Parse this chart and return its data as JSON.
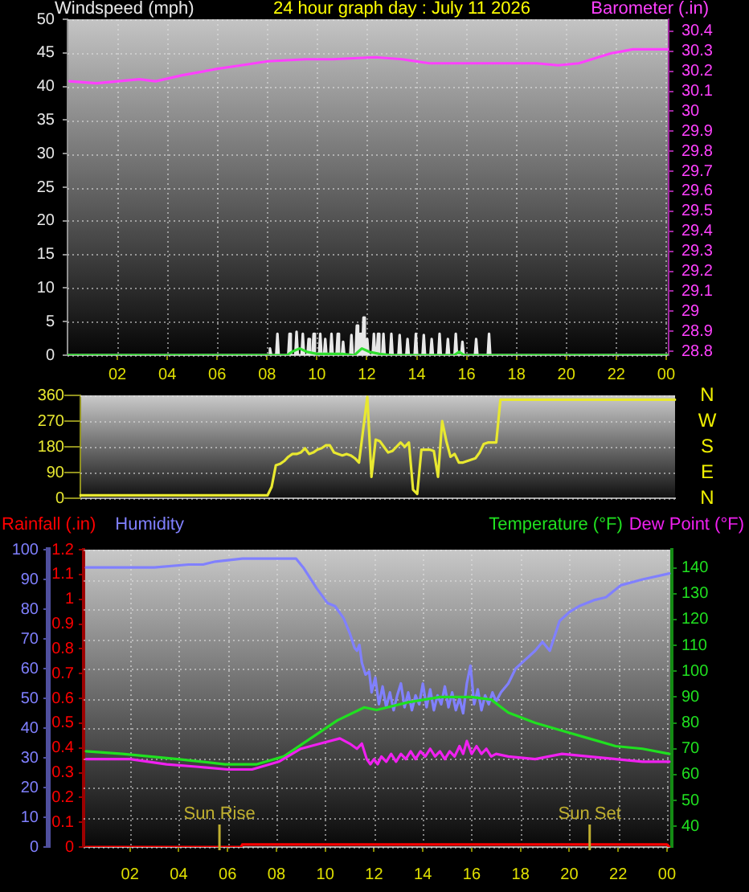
{
  "chart_data": [
    {
      "type": "line",
      "title": "24 hour graph day : July 11 2026",
      "ylabel": "Windspeed (mph)",
      "y2label": "Barometer (.in)",
      "xlim": [
        "2026-07-11T00:00",
        "2026-07-12T00:06"
      ],
      "xticks": [
        {
          "value": "2026-07-11T02:00",
          "label": "02"
        },
        {
          "value": "2026-07-11T04:00",
          "label": "04"
        },
        {
          "value": "2026-07-11T06:00",
          "label": "06"
        },
        {
          "value": "2026-07-11T08:00",
          "label": "08"
        },
        {
          "value": "2026-07-11T10:00",
          "label": "10"
        },
        {
          "value": "2026-07-11T12:00",
          "label": "12"
        },
        {
          "value": "2026-07-11T14:00",
          "label": "14"
        },
        {
          "value": "2026-07-11T16:00",
          "label": "16"
        },
        {
          "value": "2026-07-11T18:00",
          "label": "18"
        },
        {
          "value": "2026-07-11T20:00",
          "label": "20"
        },
        {
          "value": "2026-07-11T22:00",
          "label": "22"
        },
        {
          "value": "2026-07-12T00:00",
          "label": "00"
        }
      ],
      "ylim": [
        0,
        50
      ],
      "yticks": [
        0,
        5,
        10,
        15,
        20,
        25,
        30,
        35,
        40,
        45,
        50
      ],
      "y2lim": [
        28.78,
        30.46
      ],
      "y2ticks": [
        28.8,
        28.9,
        29,
        29.1,
        29.2,
        29.3,
        29.4,
        29.5,
        29.6,
        29.7,
        29.8,
        29.9,
        30,
        30.1,
        30.2,
        30.3,
        30.4
      ],
      "grid": true,
      "series": [
        {
          "color": "#ff40ff",
          "axis": "y2",
          "x": [
            "2026-07-11T00:05",
            "2026-07-11T01:10",
            "2026-07-11T02:53",
            "2026-07-11T03:32",
            "2026-07-11T04:36",
            "2026-07-11T05:54",
            "2026-07-11T06:58",
            "2026-07-11T08:02",
            "2026-07-11T09:33",
            "2026-07-11T10:37",
            "2026-07-11T12:20",
            "2026-07-11T13:25",
            "2026-07-11T14:30",
            "2026-07-11T16:39",
            "2026-07-11T18:48",
            "2026-07-11T19:40",
            "2026-07-11T20:30",
            "2026-07-11T21:48",
            "2026-07-11T22:40",
            "2026-07-12T00:06"
          ],
          "values": [
            30.15,
            30.14,
            30.16,
            30.15,
            30.18,
            30.21,
            30.23,
            30.25,
            30.26,
            30.26,
            30.27,
            30.26,
            30.24,
            30.24,
            30.24,
            30.23,
            30.24,
            30.29,
            30.31,
            30.31
          ]
        },
        {
          "color": "#e8e8e8",
          "x": [
            "2026-07-11T00:00",
            "2026-07-11T08:04",
            "2026-07-11T08:07",
            "2026-07-11T08:10",
            "2026-07-11T08:22",
            "2026-07-11T08:25",
            "2026-07-11T08:28",
            "2026-07-11T08:51",
            "2026-07-11T08:54",
            "2026-07-11T08:57",
            "2026-07-11T09:08",
            "2026-07-11T09:11",
            "2026-07-11T09:14",
            "2026-07-11T09:23",
            "2026-07-11T09:26",
            "2026-07-11T09:29",
            "2026-07-11T09:37",
            "2026-07-11T09:40",
            "2026-07-11T09:43",
            "2026-07-11T09:49",
            "2026-07-11T09:52",
            "2026-07-11T09:55",
            "2026-07-11T10:05",
            "2026-07-11T10:08",
            "2026-07-11T10:11",
            "2026-07-11T10:17",
            "2026-07-11T10:20",
            "2026-07-11T10:23",
            "2026-07-11T10:32",
            "2026-07-11T10:35",
            "2026-07-11T10:38",
            "2026-07-11T10:47",
            "2026-07-11T10:50",
            "2026-07-11T10:53",
            "2026-07-11T11:00",
            "2026-07-11T11:03",
            "2026-07-11T11:06",
            "2026-07-11T11:20",
            "2026-07-11T11:23",
            "2026-07-11T11:26",
            "2026-07-11T11:33",
            "2026-07-11T11:36",
            "2026-07-11T11:39",
            "2026-07-11T11:41",
            "2026-07-11T11:44",
            "2026-07-11T11:47",
            "2026-07-11T11:49",
            "2026-07-11T11:52",
            "2026-07-11T11:55",
            "2026-07-11T11:58",
            "2026-07-11T12:01",
            "2026-07-11T12:04",
            "2026-07-11T12:14",
            "2026-07-11T12:17",
            "2026-07-11T12:20",
            "2026-07-11T12:24",
            "2026-07-11T12:27",
            "2026-07-11T12:30",
            "2026-07-11T12:37",
            "2026-07-11T12:40",
            "2026-07-11T12:43",
            "2026-07-11T12:56",
            "2026-07-11T12:59",
            "2026-07-11T13:02",
            "2026-07-11T13:16",
            "2026-07-11T13:19",
            "2026-07-11T13:22",
            "2026-07-11T13:35",
            "2026-07-11T13:38",
            "2026-07-11T13:41",
            "2026-07-11T13:55",
            "2026-07-11T13:58",
            "2026-07-11T14:01",
            "2026-07-11T14:14",
            "2026-07-11T14:17",
            "2026-07-11T14:20",
            "2026-07-11T14:33",
            "2026-07-11T14:36",
            "2026-07-11T14:39",
            "2026-07-11T14:52",
            "2026-07-11T14:55",
            "2026-07-11T14:58",
            "2026-07-11T15:12",
            "2026-07-11T15:15",
            "2026-07-11T15:18",
            "2026-07-11T15:31",
            "2026-07-11T15:34",
            "2026-07-11T15:37",
            "2026-07-11T15:47",
            "2026-07-11T15:50",
            "2026-07-11T15:53",
            "2026-07-11T16:20",
            "2026-07-11T16:23",
            "2026-07-11T16:26",
            "2026-07-11T16:51",
            "2026-07-11T16:54",
            "2026-07-11T16:57",
            "2026-07-12T00:06"
          ],
          "values": [
            0,
            0,
            1,
            0,
            0,
            3.2,
            0,
            0,
            3.2,
            0,
            0,
            3.5,
            0,
            0,
            3.2,
            0,
            0,
            2.4,
            0,
            0,
            3.2,
            0,
            0,
            3.2,
            0,
            0,
            2.4,
            0,
            0,
            3.2,
            0,
            0,
            3.2,
            0,
            0,
            2,
            0,
            0,
            3,
            0,
            0,
            4.4,
            0,
            0,
            3.2,
            0,
            0,
            5.6,
            0,
            0,
            2.4,
            0,
            0,
            3.2,
            0,
            0,
            3.2,
            0,
            0,
            3.2,
            0,
            0,
            3.2,
            0,
            0,
            3,
            0,
            0,
            2.4,
            0,
            0,
            3.2,
            0,
            0,
            3,
            0,
            0,
            2.4,
            0,
            0,
            3.2,
            0,
            0,
            2.4,
            0,
            0,
            3.2,
            0,
            0,
            2,
            0,
            0,
            2.4,
            0,
            0,
            3.2,
            0,
            0
          ]
        },
        {
          "color": "#30e030",
          "x": [
            "2026-07-11T00:00",
            "2026-07-11T08:48",
            "2026-07-11T09:00",
            "2026-07-11T09:18",
            "2026-07-11T09:36",
            "2026-07-11T10:00",
            "2026-07-11T11:00",
            "2026-07-11T11:30",
            "2026-07-11T11:48",
            "2026-07-11T12:06",
            "2026-07-11T12:30",
            "2026-07-11T13:00",
            "2026-07-11T15:30",
            "2026-07-11T15:42",
            "2026-07-11T15:54",
            "2026-07-12T00:06"
          ],
          "values": [
            0,
            0,
            0.5,
            1,
            0.5,
            0.2,
            0.2,
            0,
            1,
            0.5,
            0.2,
            0,
            0,
            0.5,
            0,
            0
          ]
        }
      ]
    },
    {
      "type": "line",
      "tick_labels": "y",
      "annotations": [
        "N",
        "W",
        "S",
        "E",
        "N"
      ],
      "categories": [
        null,
        null,
        null,
        null,
        null,
        null,
        null,
        null,
        null,
        null,
        null,
        null,
        null,
        null,
        null,
        null,
        null,
        null,
        null,
        null,
        null,
        null,
        null,
        null,
        null,
        null,
        null,
        null,
        null,
        null,
        null,
        null,
        null,
        null,
        null,
        null,
        null,
        null,
        null,
        null,
        null,
        null,
        null,
        null,
        null,
        null,
        null,
        null,
        null,
        null,
        null,
        null,
        null,
        null,
        null,
        null,
        null,
        null,
        null,
        null,
        null,
        null,
        null,
        null,
        null,
        null,
        null,
        null,
        null,
        null,
        null,
        null,
        null,
        null,
        null,
        null,
        null,
        null,
        null,
        null,
        null,
        null,
        null,
        null,
        null,
        null,
        null,
        null,
        null,
        null,
        null,
        null,
        null,
        null,
        null,
        null,
        null,
        null,
        null,
        null,
        null,
        null,
        null,
        null,
        null,
        null,
        null,
        null,
        null,
        null,
        null,
        null,
        null,
        null,
        null,
        null,
        null,
        null,
        null,
        null,
        null,
        null,
        null,
        null,
        null,
        null,
        null,
        null,
        null,
        null,
        null,
        null,
        null,
        null,
        null,
        null,
        null,
        null,
        null,
        null,
        null,
        null,
        null,
        null
      ],
      "ylim": [
        0,
        360
      ],
      "yticks": [
        0,
        90,
        180,
        270,
        360
      ],
      "grid": "y",
      "series": [
        {
          "color": "#e8e830",
          "values": [
            10,
            10,
            10,
            10,
            10,
            10,
            10,
            10,
            10,
            10,
            10,
            10,
            10,
            10,
            10,
            10,
            10,
            10,
            10,
            10,
            10,
            10,
            10,
            10,
            10,
            10,
            10,
            10,
            10,
            10,
            10,
            10,
            10,
            10,
            10,
            10,
            10,
            10,
            10,
            10,
            10,
            10,
            10,
            10,
            10,
            10,
            40,
            115,
            120,
            130,
            145,
            155,
            155,
            160,
            175,
            155,
            160,
            170,
            175,
            185,
            185,
            160,
            155,
            150,
            155,
            150,
            140,
            125,
            240,
            355,
            75,
            205,
            200,
            180,
            160,
            165,
            180,
            195,
            180,
            195,
            30,
            15,
            170,
            170,
            170,
            165,
            75,
            270,
            200,
            145,
            155,
            125,
            125,
            130,
            135,
            140,
            160,
            190,
            195,
            195,
            195,
            345,
            345,
            345,
            345,
            345,
            345,
            345,
            345,
            345,
            345,
            345,
            345,
            345,
            345,
            345,
            345,
            345,
            345,
            345,
            345,
            345,
            345,
            345,
            345,
            345,
            345,
            345,
            345,
            345,
            345,
            345,
            345,
            345,
            345,
            345,
            345,
            345,
            345,
            345,
            345,
            345,
            345,
            345
          ]
        }
      ]
    },
    {
      "type": "line",
      "legend": "top",
      "xlim": [
        "2026-07-11T00:06",
        "2026-07-12T00:12"
      ],
      "xticks": [
        {
          "value": "2026-07-11T02:00",
          "label": "02"
        },
        {
          "value": "2026-07-11T04:00",
          "label": "04"
        },
        {
          "value": "2026-07-11T06:00",
          "label": "06"
        },
        {
          "value": "2026-07-11T08:00",
          "label": "08"
        },
        {
          "value": "2026-07-11T10:00",
          "label": "10"
        },
        {
          "value": "2026-07-11T12:00",
          "label": "12"
        },
        {
          "value": "2026-07-11T14:00",
          "label": "14"
        },
        {
          "value": "2026-07-11T16:00",
          "label": "16"
        },
        {
          "value": "2026-07-11T18:00",
          "label": "18"
        },
        {
          "value": "2026-07-11T20:00",
          "label": "20"
        },
        {
          "value": "2026-07-11T22:00",
          "label": "22"
        },
        {
          "value": "2026-07-12T00:00",
          "label": "00"
        }
      ],
      "ylim": [
        0,
        100
      ],
      "yticks": [
        0,
        10,
        20,
        30,
        40,
        50,
        60,
        70,
        80,
        90,
        100
      ],
      "y2lim": [
        32,
        147
      ],
      "y2ticks": [
        40,
        50,
        60,
        70,
        80,
        90,
        100,
        110,
        120,
        130,
        140
      ],
      "y3lim": [
        0,
        1.2
      ],
      "y3ticks": [
        0,
        0.1,
        0.2,
        0.3,
        0.4,
        0.5,
        0.6,
        0.7,
        0.8,
        0.9,
        1,
        1.1,
        1.2
      ],
      "grid": true,
      "ref_lines": [
        {
          "axis": "x",
          "value": "2026-07-11T05:40",
          "label": "Sun Rise",
          "color": "#c0b030"
        },
        {
          "axis": "x",
          "value": "2026-07-11T20:50",
          "label": "Sun Set",
          "color": "#c0b030"
        }
      ],
      "series": [
        {
          "name": "Rainfall (.in)",
          "color": "#ff0000",
          "axis": "y3",
          "x": [
            "2026-07-11T00:12",
            "2026-07-11T06:33",
            "2026-07-11T06:36",
            "2026-07-12T00:00",
            "2026-07-12T00:06"
          ],
          "values": [
            0,
            0,
            0.01,
            0.01,
            0
          ]
        },
        {
          "name": "Humidity",
          "color": "#8080ff",
          "x": [
            "2026-07-11T00:12",
            "2026-07-11T01:30",
            "2026-07-11T03:00",
            "2026-07-11T04:24",
            "2026-07-11T05:00",
            "2026-07-11T05:30",
            "2026-07-11T06:36",
            "2026-07-11T08:48",
            "2026-07-11T09:06",
            "2026-07-11T09:39",
            "2026-07-11T10:06",
            "2026-07-11T10:24",
            "2026-07-11T10:45",
            "2026-07-11T11:00",
            "2026-07-11T11:12",
            "2026-07-11T11:18",
            "2026-07-11T11:24",
            "2026-07-11T11:30",
            "2026-07-11T11:39",
            "2026-07-11T11:48",
            "2026-07-11T11:54",
            "2026-07-11T12:03",
            "2026-07-11T12:12",
            "2026-07-11T12:21",
            "2026-07-11T12:30",
            "2026-07-11T12:39",
            "2026-07-11T12:48",
            "2026-07-11T12:57",
            "2026-07-11T13:06",
            "2026-07-11T13:15",
            "2026-07-11T13:24",
            "2026-07-11T13:33",
            "2026-07-11T13:42",
            "2026-07-11T13:51",
            "2026-07-11T14:00",
            "2026-07-11T14:09",
            "2026-07-11T14:18",
            "2026-07-11T14:27",
            "2026-07-11T14:36",
            "2026-07-11T14:45",
            "2026-07-11T14:54",
            "2026-07-11T15:03",
            "2026-07-11T15:12",
            "2026-07-11T15:21",
            "2026-07-11T15:30",
            "2026-07-11T15:39",
            "2026-07-11T15:48",
            "2026-07-11T15:57",
            "2026-07-11T16:06",
            "2026-07-11T16:15",
            "2026-07-11T16:24",
            "2026-07-11T16:33",
            "2026-07-11T16:42",
            "2026-07-11T16:51",
            "2026-07-11T17:00",
            "2026-07-11T17:12",
            "2026-07-11T17:30",
            "2026-07-11T17:48",
            "2026-07-11T18:12",
            "2026-07-11T18:36",
            "2026-07-11T18:54",
            "2026-07-11T19:12",
            "2026-07-11T19:36",
            "2026-07-11T20:00",
            "2026-07-11T20:24",
            "2026-07-11T21:00",
            "2026-07-11T21:30",
            "2026-07-11T22:06",
            "2026-07-11T23:00",
            "2026-07-12T00:06"
          ],
          "values": [
            94,
            94,
            94,
            95,
            95,
            96,
            97,
            97,
            94,
            87,
            82,
            81,
            77,
            72,
            67,
            66,
            68,
            62,
            58,
            59,
            52,
            57,
            48,
            54,
            47,
            52,
            46,
            51,
            55,
            47,
            52,
            46,
            51,
            48,
            55,
            47,
            53,
            46,
            51,
            48,
            54,
            47,
            52,
            46,
            50,
            45,
            55,
            61,
            48,
            53,
            46,
            51,
            48,
            52,
            49,
            52,
            55,
            60,
            63,
            66,
            69,
            66,
            76,
            79,
            81,
            83,
            84,
            88,
            90,
            92
          ]
        },
        {
          "name": "Temperature (°F)",
          "color": "#20e020",
          "axis": "y2",
          "x": [
            "2026-07-11T00:12",
            "2026-07-11T01:42",
            "2026-07-11T03:57",
            "2026-07-11T05:54",
            "2026-07-11T07:12",
            "2026-07-11T08:18",
            "2026-07-11T09:24",
            "2026-07-11T10:30",
            "2026-07-11T11:36",
            "2026-07-11T12:06",
            "2026-07-11T13:24",
            "2026-07-11T14:42",
            "2026-07-11T16:00",
            "2026-07-11T16:48",
            "2026-07-11T17:30",
            "2026-07-11T18:36",
            "2026-07-11T19:42",
            "2026-07-11T20:48",
            "2026-07-11T21:54",
            "2026-07-11T23:00",
            "2026-07-12T00:06"
          ],
          "values": [
            69,
            68,
            66,
            64,
            64,
            67,
            74,
            81,
            86,
            85,
            88,
            90,
            90,
            89,
            84,
            80,
            77,
            74,
            71,
            70,
            68
          ]
        },
        {
          "name": "Dew Point (°F)",
          "color": "#f020f0",
          "axis": "y2",
          "x": [
            "2026-07-11T00:12",
            "2026-07-11T02:00",
            "2026-07-11T03:30",
            "2026-07-11T04:48",
            "2026-07-11T06:00",
            "2026-07-11T07:00",
            "2026-07-11T08:06",
            "2026-07-11T09:00",
            "2026-07-11T09:48",
            "2026-07-11T10:36",
            "2026-07-11T11:00",
            "2026-07-11T11:18",
            "2026-07-11T11:30",
            "2026-07-11T11:42",
            "2026-07-11T11:51",
            "2026-07-11T12:00",
            "2026-07-11T12:09",
            "2026-07-11T12:18",
            "2026-07-11T12:30",
            "2026-07-11T12:42",
            "2026-07-11T12:54",
            "2026-07-11T13:06",
            "2026-07-11T13:18",
            "2026-07-11T13:30",
            "2026-07-11T13:42",
            "2026-07-11T13:54",
            "2026-07-11T14:06",
            "2026-07-11T14:18",
            "2026-07-11T14:30",
            "2026-07-11T14:42",
            "2026-07-11T14:54",
            "2026-07-11T15:06",
            "2026-07-11T15:18",
            "2026-07-11T15:30",
            "2026-07-11T15:39",
            "2026-07-11T15:48",
            "2026-07-11T16:00",
            "2026-07-11T16:12",
            "2026-07-11T16:24",
            "2026-07-11T16:36",
            "2026-07-11T16:48",
            "2026-07-11T17:00",
            "2026-07-11T17:30",
            "2026-07-11T18:36",
            "2026-07-11T19:42",
            "2026-07-11T20:48",
            "2026-07-11T21:54",
            "2026-07-11T23:00",
            "2026-07-12T00:06"
          ],
          "values": [
            66,
            66,
            64,
            63,
            62,
            62,
            65,
            70,
            72,
            74,
            72,
            70,
            72,
            66,
            64,
            66,
            64,
            67,
            65,
            68,
            65,
            68,
            66,
            69,
            66,
            69,
            67,
            70,
            67,
            69,
            66,
            69,
            67,
            71,
            68,
            73,
            68,
            71,
            68,
            70,
            67,
            68,
            67,
            66,
            68,
            67,
            66,
            65,
            65
          ]
        }
      ]
    }
  ]
}
